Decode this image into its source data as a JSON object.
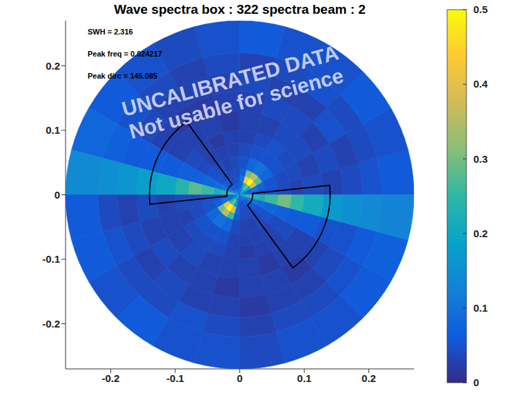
{
  "chart_data": {
    "type": "polar_heatmap",
    "title": "Wave spectra box : 322 spectra beam : 2",
    "annotations": [
      "SWH = 2.316",
      "Peak freq = 0.024217",
      "Peak dirc = 145.085"
    ],
    "watermark": [
      "UNCALIBRATED DATA",
      "Not usable for science"
    ],
    "xlim": [
      -0.27,
      0.27
    ],
    "ylim": [
      -0.27,
      0.27
    ],
    "xticks": [
      -0.2,
      -0.1,
      0,
      0.1,
      0.2
    ],
    "yticks": [
      -0.2,
      -0.1,
      0,
      0.1,
      0.2
    ],
    "radius_edges": [
      0,
      0.01,
      0.02,
      0.03,
      0.04,
      0.06,
      0.08,
      0.1,
      0.13,
      0.16,
      0.19,
      0.22,
      0.27
    ],
    "direction_edges": [
      0,
      15,
      30,
      45,
      60,
      75,
      90,
      105,
      120,
      135,
      150,
      165,
      180,
      195,
      210,
      225,
      240,
      255,
      270,
      285,
      300,
      315,
      330,
      345,
      360
    ],
    "cells": [
      [
        0.12,
        0.1,
        0.14,
        0.2,
        0.18,
        0.1,
        0.08,
        0.08,
        0.1,
        0.1,
        0.14,
        0.22,
        0.12,
        0.1,
        0.18,
        0.2,
        0.12,
        0.08,
        0.08,
        0.08,
        0.1,
        0.1,
        0.14,
        0.22
      ],
      [
        0.08,
        0.07,
        0.2,
        0.3,
        0.22,
        0.08,
        0.06,
        0.05,
        0.06,
        0.07,
        0.12,
        0.26,
        0.08,
        0.08,
        0.22,
        0.3,
        0.18,
        0.06,
        0.05,
        0.05,
        0.06,
        0.07,
        0.12,
        0.26
      ],
      [
        0.06,
        0.1,
        0.38,
        0.5,
        0.44,
        0.1,
        0.05,
        0.04,
        0.05,
        0.06,
        0.1,
        0.24,
        0.06,
        0.1,
        0.42,
        0.5,
        0.38,
        0.08,
        0.04,
        0.04,
        0.05,
        0.06,
        0.1,
        0.24
      ],
      [
        0.05,
        0.08,
        0.28,
        0.36,
        0.3,
        0.07,
        0.04,
        0.04,
        0.04,
        0.05,
        0.09,
        0.22,
        0.05,
        0.07,
        0.3,
        0.36,
        0.26,
        0.06,
        0.04,
        0.04,
        0.04,
        0.05,
        0.09,
        0.22
      ],
      [
        0.05,
        0.05,
        0.08,
        0.1,
        0.08,
        0.05,
        0.04,
        0.03,
        0.04,
        0.05,
        0.08,
        0.26,
        0.05,
        0.05,
        0.08,
        0.1,
        0.08,
        0.04,
        0.03,
        0.03,
        0.04,
        0.05,
        0.08,
        0.26
      ],
      [
        0.04,
        0.04,
        0.05,
        0.05,
        0.05,
        0.04,
        0.03,
        0.03,
        0.03,
        0.04,
        0.07,
        0.28,
        0.04,
        0.04,
        0.05,
        0.05,
        0.05,
        0.03,
        0.03,
        0.03,
        0.03,
        0.04,
        0.07,
        0.3
      ],
      [
        0.03,
        0.04,
        0.04,
        0.05,
        0.04,
        0.03,
        0.03,
        0.02,
        0.03,
        0.04,
        0.07,
        0.24,
        0.04,
        0.03,
        0.04,
        0.04,
        0.04,
        0.03,
        0.02,
        0.03,
        0.03,
        0.04,
        0.06,
        0.25
      ],
      [
        0.04,
        0.03,
        0.04,
        0.04,
        0.03,
        0.03,
        0.02,
        0.03,
        0.03,
        0.03,
        0.06,
        0.2,
        0.03,
        0.03,
        0.03,
        0.04,
        0.03,
        0.03,
        0.03,
        0.02,
        0.03,
        0.03,
        0.06,
        0.21
      ],
      [
        0.03,
        0.04,
        0.03,
        0.04,
        0.04,
        0.03,
        0.03,
        0.02,
        0.02,
        0.03,
        0.06,
        0.18,
        0.04,
        0.03,
        0.04,
        0.03,
        0.03,
        0.02,
        0.03,
        0.03,
        0.02,
        0.03,
        0.05,
        0.17
      ],
      [
        0.04,
        0.03,
        0.05,
        0.03,
        0.03,
        0.04,
        0.03,
        0.03,
        0.03,
        0.04,
        0.06,
        0.16,
        0.03,
        0.04,
        0.03,
        0.04,
        0.03,
        0.03,
        0.02,
        0.03,
        0.03,
        0.04,
        0.05,
        0.15
      ],
      [
        0.05,
        0.04,
        0.04,
        0.05,
        0.04,
        0.03,
        0.04,
        0.03,
        0.04,
        0.05,
        0.07,
        0.15,
        0.04,
        0.05,
        0.04,
        0.04,
        0.05,
        0.04,
        0.03,
        0.04,
        0.04,
        0.05,
        0.06,
        0.14
      ],
      [
        0.06,
        0.05,
        0.06,
        0.05,
        0.05,
        0.06,
        0.05,
        0.04,
        0.05,
        0.06,
        0.08,
        0.14,
        0.06,
        0.06,
        0.05,
        0.06,
        0.05,
        0.05,
        0.04,
        0.05,
        0.05,
        0.06,
        0.07,
        0.13
      ]
    ],
    "boxes": [
      {
        "r": [
          0.02,
          0.14
        ],
        "dir": [
          126,
          186
        ]
      },
      {
        "r": [
          0.02,
          0.14
        ],
        "dir": [
          306,
          366
        ]
      }
    ],
    "colorbar": {
      "range": [
        0,
        0.5
      ],
      "ticks": [
        0,
        0.1,
        0.2,
        0.3,
        0.4,
        0.5
      ]
    }
  }
}
